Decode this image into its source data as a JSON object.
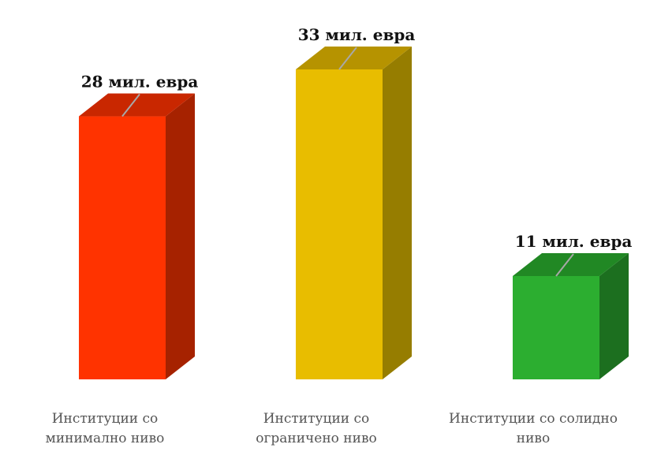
{
  "chart_data": {
    "type": "bar",
    "style": "3d",
    "categories": [
      [
        "Институции со",
        "минимално ниво"
      ],
      [
        "Институции со",
        "ограничено ниво"
      ],
      [
        "Институции со солидно",
        "ниво"
      ]
    ],
    "values": [
      28,
      33,
      11
    ],
    "data_labels": [
      "28 мил. евра",
      "33 мил. евра",
      "11 мил. евра"
    ],
    "unit": "мил. евра",
    "ylim": [
      0,
      33
    ],
    "grid": false,
    "legend": "none",
    "colors": [
      {
        "front": "#ff3300",
        "side": "#a62200",
        "top": "#c92700"
      },
      {
        "front": "#e8bd00",
        "side": "#967d00",
        "top": "#b69300"
      },
      {
        "front": "#2cae30",
        "side": "#1c6f1f",
        "top": "#218824"
      }
    ]
  }
}
